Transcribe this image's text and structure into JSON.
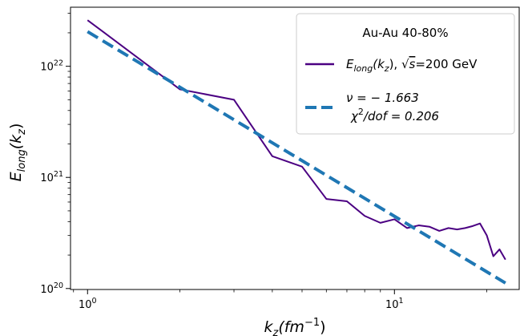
{
  "chart_data": {
    "type": "line",
    "xscale": "log",
    "yscale": "log",
    "xlim": [
      0.88,
      25.5
    ],
    "ylim": [
      9.8e+19,
      3.4e+22
    ],
    "xlabel": {
      "base": "k",
      "sub": "z",
      "unit": "(fm",
      "sup": "−1",
      "close": ")"
    },
    "ylabel": {
      "base": "E",
      "sub": "long",
      "arg": "(k",
      "argsub": "z",
      "close": ")"
    },
    "x_ticks": [
      {
        "value": 1,
        "base": "10",
        "exp": "0"
      },
      {
        "value": 10,
        "base": "10",
        "exp": "1"
      }
    ],
    "y_ticks": [
      {
        "value": 1e+20,
        "base": "10",
        "exp": "20"
      },
      {
        "value": 1e+21,
        "base": "10",
        "exp": "21"
      },
      {
        "value": 1e+22,
        "base": "10",
        "exp": "22"
      }
    ],
    "legend": {
      "placement": "top-right",
      "title": "Au-Au  40-80%",
      "entries": [
        {
          "series": 0,
          "lines": [
            "E_long(k_z),  √s=200 GeV"
          ]
        },
        {
          "series": 1,
          "lines": [
            "ν = −1.663",
            "χ²/dof = 0.206"
          ]
        }
      ]
    },
    "series": [
      {
        "name": "E_long(k_z),  √s=200 GeV",
        "color": "#4b0082",
        "style": "solid",
        "x": [
          1,
          2,
          3,
          4,
          5,
          6,
          7,
          8,
          9,
          10,
          11,
          12,
          13,
          14,
          15,
          16,
          17,
          18,
          19,
          20,
          21,
          22,
          23
        ],
        "y": [
          2.6e+22,
          6.2e+21,
          5e+21,
          1.55e+21,
          1.25e+21,
          6.4e+20,
          6.1e+20,
          4.5e+20,
          3.9e+20,
          4.2e+20,
          3.5e+20,
          3.7e+20,
          3.6e+20,
          3.3e+20,
          3.5e+20,
          3.4e+20,
          3.5e+20,
          3.65e+20,
          3.85e+20,
          3e+20,
          1.95e+20,
          2.25e+20,
          1.82e+20
        ]
      },
      {
        "name": "ν = −1.663  χ²/dof = 0.206",
        "color": "#1f77b4",
        "style": "dashed",
        "x": [
          1,
          23
        ],
        "y": [
          2.05e+22,
          1.12e+20
        ]
      }
    ],
    "legend_texts": {
      "title": "Au-Au  40-80%",
      "s0_base": "E",
      "s0_sub": "long",
      "s0_arg": "(k",
      "s0_argsub": "z",
      "s0_rest": "),  ",
      "s0_sqrt": "√",
      "s0_s": "s",
      "s0_energy": "=200 GeV",
      "s1_nu": "ν = − 1.663",
      "s1_chi": "χ",
      "s1_chisup": "2",
      "s1_dof": "/dof = 0.206"
    }
  }
}
